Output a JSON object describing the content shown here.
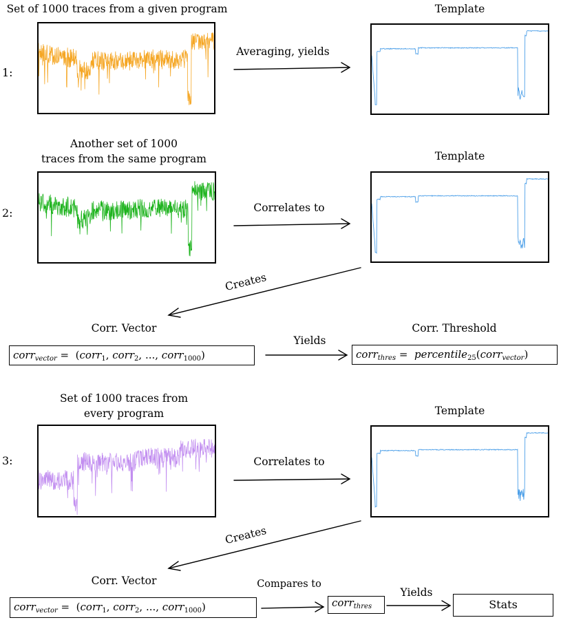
{
  "row1": {
    "number": "1:",
    "source_title": "Set of 1000 traces from a given program",
    "arrow_label": "Averaging, yields",
    "template_title": "Template"
  },
  "row2": {
    "number": "2:",
    "source_title_line1": "Another set of 1000",
    "source_title_line2": "traces from the same program",
    "arrow_label": "Correlates to",
    "template_title": "Template",
    "creates_label": "Creates",
    "vector_title": "Corr. Vector",
    "yields_label": "Yields",
    "threshold_title": "Corr. Threshold"
  },
  "row3": {
    "number": "3:",
    "source_title_line1": "Set of 1000 traces from",
    "source_title_line2": "every program",
    "arrow_label": "Correlates to",
    "template_title": "Template",
    "creates_label": "Creates",
    "vector_title": "Corr. Vector",
    "compares_label": "Compares to",
    "yields_label": "Yields",
    "stats_label": "Stats"
  },
  "formulas": {
    "corr": "corr",
    "sub_vector": "vector",
    "sub_thres": "thres",
    "equals": " = ",
    "vector_open": "(",
    "sub_1": "1",
    "comma": ", ",
    "sub_2": "2",
    "ellipsis": "...",
    "sub_1000": "1000",
    "vector_close": ")",
    "percentile": "percentile",
    "sub_25": "25"
  },
  "colors": {
    "orange_trace": "#f5a623",
    "green_trace": "#1db31d",
    "purple_trace": "#c28ef0",
    "template_trace": "#4a9ee8"
  }
}
